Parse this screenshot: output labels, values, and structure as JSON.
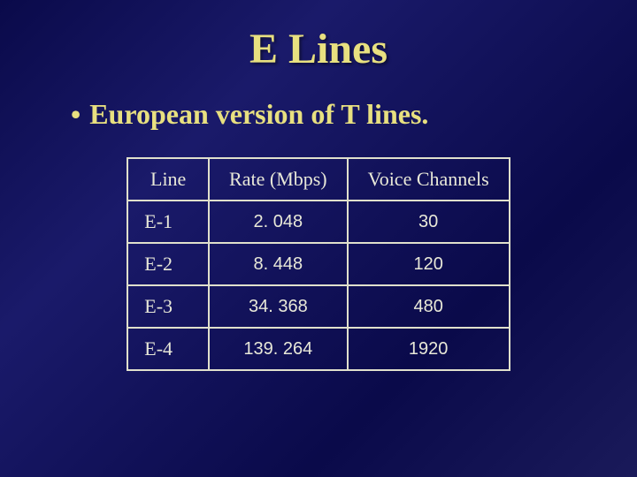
{
  "title": "E Lines",
  "bullet": "•",
  "subtitle": "European version of T lines.",
  "table": {
    "columns": [
      "Line",
      "Rate (Mbps)",
      "Voice Channels"
    ],
    "rows": [
      [
        "E-1",
        "2. 048",
        "30"
      ],
      [
        "E-2",
        "8. 448",
        "120"
      ],
      [
        "E-3",
        "34. 368",
        "480"
      ],
      [
        "E-4",
        "139. 264",
        "1920"
      ]
    ],
    "border_color": "#e0e0cc",
    "text_color": "#e8e8d8"
  },
  "colors": {
    "title_color": "#e8e080",
    "background_gradient": [
      "#0a0a4a",
      "#1a1a6a",
      "#0a0a4a",
      "#1a1a5a"
    ]
  },
  "typography": {
    "title_fontsize": 48,
    "subtitle_fontsize": 32,
    "header_fontsize": 22,
    "cell_fontsize": 20
  }
}
